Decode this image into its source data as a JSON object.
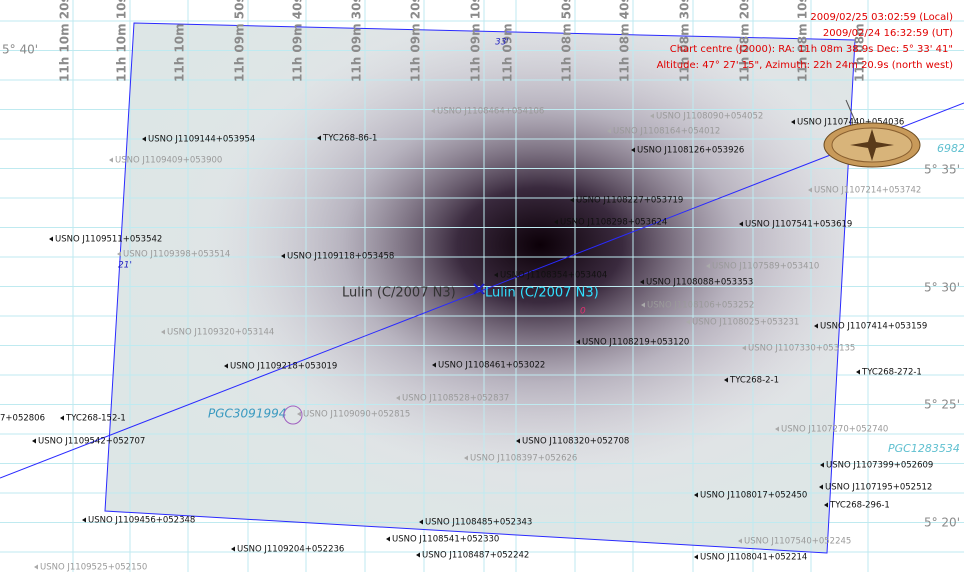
{
  "info": [
    "2009/02/25 03:02:59 (Local)",
    "2009/02/24 16:32:59 (UT)",
    "Chart centre (J2000): RA: 11h 08m 38.9s Dec: 5° 33' 41\"",
    "Altitude: 47° 27' 15\", Azimuth: 22h 24m 20.9s (north west)"
  ],
  "ra_labels": [
    "11h 10m 20s",
    "11h 10m 10s",
    "11h 10m",
    "11h 09m 50s",
    "11h 09m 40s",
    "11h 09m 30s",
    "11h 09m 20s",
    "11h 09m 10s",
    "11h 09m",
    "11h 08m 50s",
    "11h 08m 40s",
    "11h 08m 30s",
    "11h 08m 20s",
    "11h 08m 10s",
    "11h 08m"
  ],
  "dec_labels": [
    "5° 40'",
    "5° 35'",
    "5° 30'",
    "5° 25'",
    "5° 20'"
  ],
  "comet": {
    "label": "Lulin (C/2007 N3)"
  },
  "galaxies": [
    "PGC3091994",
    "PGC1283534",
    "6982"
  ],
  "grid_marks": [
    "33'",
    "21'",
    "0"
  ],
  "objects": [
    {
      "label": "USNO J1109144+053954"
    },
    {
      "label": "TYC268-86-1"
    },
    {
      "label": "USNO J1108126+053926"
    },
    {
      "label": "USNO J1107440+054036"
    },
    {
      "label": "USNO J1108227+053719"
    },
    {
      "label": "USNO J1107541+053619"
    },
    {
      "label": "USNO J1109511+053542"
    },
    {
      "label": "USNO J1109118+053458"
    },
    {
      "label": "USNO J1108354+053404"
    },
    {
      "label": "USNO J1108088+053353"
    },
    {
      "label": "USNO J1107414+053159"
    },
    {
      "label": "USNO J1108219+053120"
    },
    {
      "label": "USNO J1109218+053019"
    },
    {
      "label": "USNO J1108461+053022"
    },
    {
      "label": "TYC268-272-1"
    },
    {
      "label": "TYC268-2-1"
    },
    {
      "label": "TYC268-152-1"
    },
    {
      "label": "USNO J1109542+052707"
    },
    {
      "label": "USNO J1108320+052708"
    },
    {
      "label": "USNO J1107399+052609"
    },
    {
      "label": "USNO J1107195+052512"
    },
    {
      "label": "USNO J1108017+052450"
    },
    {
      "label": "TYC268-296-1"
    },
    {
      "label": "USNO J1109456+052348"
    },
    {
      "label": "USNO J1108485+052343"
    },
    {
      "label": "USNO J1108541+052330"
    },
    {
      "label": "USNO J1109204+052236"
    },
    {
      "label": "USNO J1108487+052242"
    },
    {
      "label": "USNO J1108041+052214"
    },
    {
      "label": "7+052806"
    },
    {
      "label": "USNO J1108298+053624"
    },
    {
      "label": "USNO J1108464+054106"
    },
    {
      "label": "USNO J1108090+054052"
    },
    {
      "label": "USNO J1108164+054012"
    },
    {
      "label": "USNO J1109409+053900"
    },
    {
      "label": "USNO J1107214+053742"
    },
    {
      "label": "USNO J1109398+053514"
    },
    {
      "label": "USNO J1107589+053410"
    },
    {
      "label": "USNO J1108106+053252"
    },
    {
      "label": "USNO J1109320+053144"
    },
    {
      "label": "USNO J1108025+053231"
    },
    {
      "label": "USNO J1107330+053135"
    },
    {
      "label": "USNO J1108528+052837"
    },
    {
      "label": "USNO J1109090+052815"
    },
    {
      "label": "USNO J1107270+052740"
    },
    {
      "label": "USNO J1108397+052626"
    },
    {
      "label": "USNO J1107540+052245"
    },
    {
      "label": "USNO J1109525+052150"
    }
  ]
}
